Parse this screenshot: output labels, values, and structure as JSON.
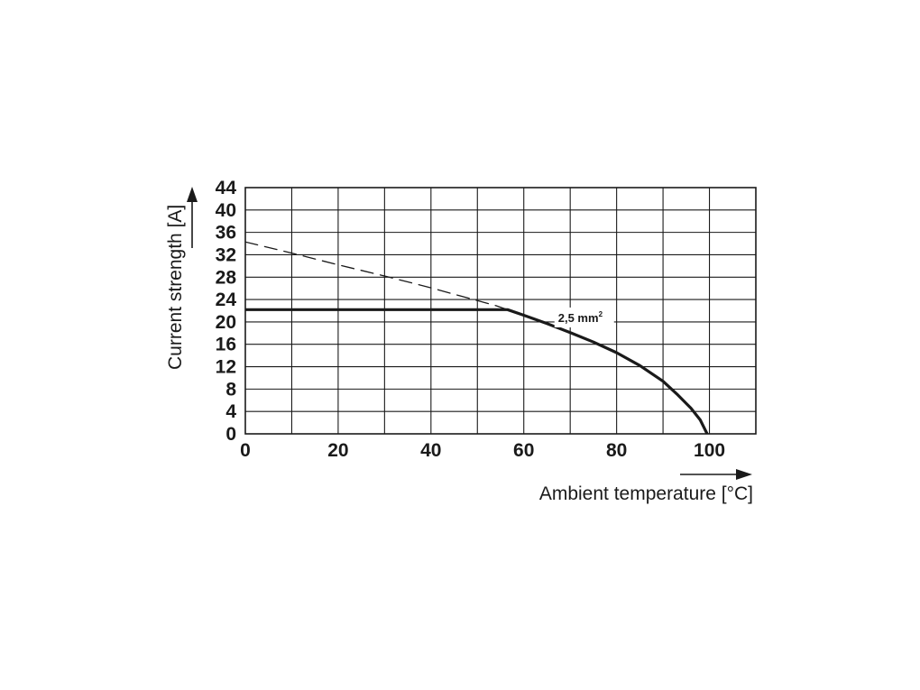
{
  "chart_data": {
    "type": "line",
    "xlabel": "Ambient temperature [°C]",
    "ylabel": "Current strength [A]",
    "xlim": [
      0,
      110
    ],
    "ylim": [
      0,
      44
    ],
    "x_ticks": [
      0,
      20,
      40,
      60,
      80,
      100
    ],
    "y_ticks": [
      0,
      4,
      8,
      12,
      16,
      20,
      24,
      28,
      32,
      36,
      40,
      44
    ],
    "x_grid_step": 10,
    "y_grid_step": 4,
    "grid": true,
    "series": [
      {
        "name": "2,5 mm²",
        "style": "solid",
        "color": "#1a1a1a",
        "points": [
          [
            0,
            22.2
          ],
          [
            56.5,
            22.2
          ],
          [
            60,
            21.2
          ],
          [
            65,
            19.7
          ],
          [
            70,
            18.1
          ],
          [
            75,
            16.4
          ],
          [
            80,
            14.5
          ],
          [
            85,
            12.2
          ],
          [
            90,
            9.4
          ],
          [
            93,
            7.1
          ],
          [
            96,
            4.6
          ],
          [
            98,
            2.5
          ],
          [
            99.5,
            0
          ]
        ]
      },
      {
        "style": "dashed",
        "color": "#1a1a1a",
        "points": [
          [
            0,
            34.3
          ],
          [
            10,
            32.3
          ],
          [
            20,
            30.2
          ],
          [
            30,
            28.2
          ],
          [
            40,
            26.1
          ],
          [
            50,
            23.8
          ],
          [
            54,
            22.9
          ],
          [
            56.5,
            22.2
          ]
        ]
      }
    ],
    "annotation": {
      "text": "2,5 mm",
      "superscript": "2",
      "at": [
        74,
        20.8
      ]
    }
  }
}
